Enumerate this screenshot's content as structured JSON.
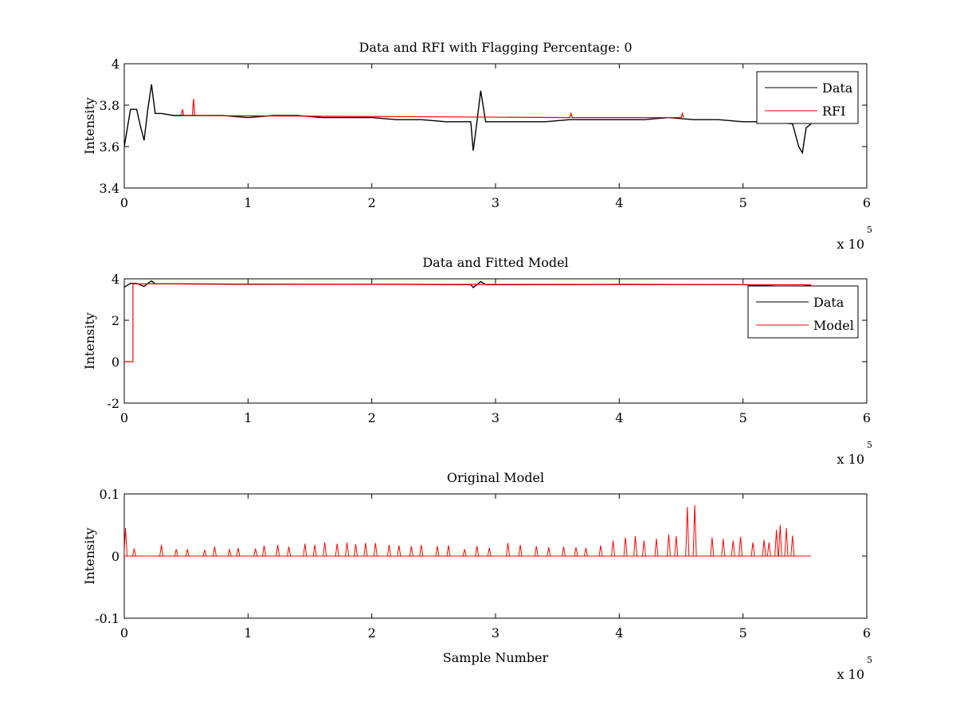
{
  "chart_data": [
    {
      "type": "line",
      "title": "Data and RFI with Flagging Percentage: 0",
      "xlabel": "",
      "ylabel": "Intensity",
      "xlim": [
        0,
        600000
      ],
      "ylim": [
        3.4,
        4.0
      ],
      "xticks": [
        0,
        100000,
        200000,
        300000,
        400000,
        500000,
        600000
      ],
      "xtick_labels": [
        "0",
        "1",
        "2",
        "3",
        "4",
        "5",
        "6"
      ],
      "yticks": [
        3.4,
        3.6,
        3.8,
        4.0
      ],
      "ytick_labels": [
        "3.4",
        "3.6",
        "3.8",
        "4"
      ],
      "x_multiplier": {
        "prefix": "x 10",
        "exponent": "5"
      },
      "grid": false,
      "legend_position": "top-right",
      "series": [
        {
          "name": "Data",
          "color": "#000000",
          "x": [
            0,
            5000,
            10000,
            13000,
            16000,
            19000,
            22000,
            25000,
            30000,
            40000,
            60000,
            80000,
            100000,
            120000,
            140000,
            160000,
            180000,
            200000,
            220000,
            240000,
            260000,
            275000,
            280000,
            282000,
            285000,
            288000,
            292000,
            300000,
            320000,
            340000,
            360000,
            380000,
            400000,
            420000,
            440000,
            460000,
            480000,
            500000,
            520000,
            540000,
            545000,
            548000,
            551000,
            555000
          ],
          "y": [
            3.6,
            3.78,
            3.78,
            3.7,
            3.63,
            3.78,
            3.9,
            3.76,
            3.76,
            3.75,
            3.75,
            3.75,
            3.74,
            3.75,
            3.75,
            3.74,
            3.74,
            3.74,
            3.73,
            3.73,
            3.72,
            3.72,
            3.72,
            3.58,
            3.72,
            3.87,
            3.72,
            3.72,
            3.72,
            3.72,
            3.73,
            3.73,
            3.73,
            3.73,
            3.74,
            3.73,
            3.73,
            3.72,
            3.72,
            3.71,
            3.6,
            3.57,
            3.69,
            3.71
          ]
        },
        {
          "name": "RFI",
          "color": "#ff0000",
          "x": [
            46000,
            47000,
            48000,
            55000,
            56000,
            57000,
            360000,
            361000,
            362000,
            450000,
            451000,
            452000
          ],
          "y": [
            3.75,
            3.78,
            3.75,
            3.75,
            3.83,
            3.75,
            3.74,
            3.76,
            3.74,
            3.74,
            3.76,
            3.74
          ]
        }
      ]
    },
    {
      "type": "line",
      "title": "Data and Fitted Model",
      "xlabel": "",
      "ylabel": "Intensity",
      "xlim": [
        0,
        600000
      ],
      "ylim": [
        -2,
        4
      ],
      "xticks": [
        0,
        100000,
        200000,
        300000,
        400000,
        500000,
        600000
      ],
      "xtick_labels": [
        "0",
        "1",
        "2",
        "3",
        "4",
        "5",
        "6"
      ],
      "yticks": [
        -2,
        0,
        2,
        4
      ],
      "ytick_labels": [
        "-2",
        "0",
        "2",
        "4"
      ],
      "x_multiplier": {
        "prefix": "x 10",
        "exponent": "5"
      },
      "grid": false,
      "legend_position": "top-right",
      "series": [
        {
          "name": "Data",
          "color": "#000000",
          "x": [
            0,
            5000,
            10000,
            16000,
            19000,
            22000,
            25000,
            100000,
            200000,
            280000,
            282000,
            285000,
            288000,
            292000,
            400000,
            500000,
            545000,
            548000,
            551000,
            555000
          ],
          "y": [
            3.6,
            3.78,
            3.78,
            3.63,
            3.78,
            3.9,
            3.76,
            3.74,
            3.74,
            3.72,
            3.58,
            3.72,
            3.87,
            3.72,
            3.73,
            3.72,
            3.6,
            3.57,
            3.69,
            3.71
          ]
        },
        {
          "name": "Model",
          "color": "#ff0000",
          "x": [
            0,
            7000,
            7001,
            100000,
            200000,
            300000,
            400000,
            500000,
            555000
          ],
          "y": [
            0,
            0,
            3.76,
            3.75,
            3.74,
            3.73,
            3.73,
            3.72,
            3.71
          ]
        }
      ]
    },
    {
      "type": "line",
      "title": "Original Model",
      "xlabel": "Sample Number",
      "ylabel": "Intensity",
      "xlim": [
        0,
        600000
      ],
      "ylim": [
        -0.1,
        0.1
      ],
      "xticks": [
        0,
        100000,
        200000,
        300000,
        400000,
        500000,
        600000
      ],
      "xtick_labels": [
        "0",
        "1",
        "2",
        "3",
        "4",
        "5",
        "6"
      ],
      "yticks": [
        -0.1,
        0,
        0.1
      ],
      "ytick_labels": [
        "-0.1",
        "0",
        "0.1"
      ],
      "x_multiplier": {
        "prefix": "x 10",
        "exponent": "5"
      },
      "grid": false,
      "series": [
        {
          "color": "#ff0000",
          "x": [
            1000,
            8000,
            30000,
            42000,
            51000,
            65000,
            73000,
            85000,
            92000,
            106000,
            113000,
            124000,
            133000,
            146000,
            154000,
            162000,
            172000,
            180000,
            187000,
            195000,
            203000,
            214000,
            222000,
            232000,
            240000,
            253000,
            262000,
            275000,
            285000,
            295000,
            310000,
            320000,
            333000,
            343000,
            355000,
            365000,
            373000,
            385000,
            395000,
            405000,
            413000,
            420000,
            430000,
            440000,
            446000,
            455000,
            461000,
            475000,
            484000,
            492000,
            498000,
            508000,
            517000,
            521000,
            527000,
            530000,
            535000,
            540000
          ],
          "y": [
            0.045,
            0.012,
            0.018,
            0.011,
            0.011,
            0.01,
            0.015,
            0.011,
            0.013,
            0.012,
            0.017,
            0.018,
            0.015,
            0.02,
            0.018,
            0.022,
            0.02,
            0.022,
            0.019,
            0.021,
            0.021,
            0.018,
            0.017,
            0.016,
            0.018,
            0.016,
            0.017,
            0.011,
            0.016,
            0.013,
            0.021,
            0.018,
            0.016,
            0.014,
            0.015,
            0.014,
            0.013,
            0.017,
            0.025,
            0.03,
            0.032,
            0.025,
            0.028,
            0.035,
            0.032,
            0.079,
            0.082,
            0.03,
            0.028,
            0.025,
            0.031,
            0.022,
            0.026,
            0.022,
            0.042,
            0.05,
            0.045,
            0.033
          ]
        }
      ]
    }
  ]
}
